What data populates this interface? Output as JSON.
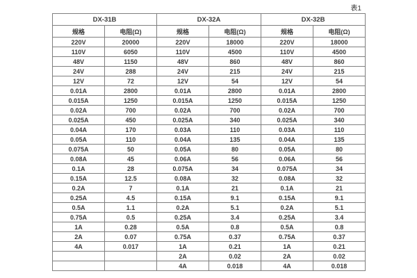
{
  "page": {
    "caption": "表1"
  },
  "table": {
    "groups": [
      {
        "name": "DX-31B",
        "col_headers": [
          "规格",
          "电阻(Ω)"
        ]
      },
      {
        "name": "DX-32A",
        "col_headers": [
          "规格",
          "电阻(Ω)"
        ]
      },
      {
        "name": "DX-32B",
        "col_headers": [
          "规格",
          "电阻(Ω)"
        ]
      }
    ],
    "rows": [
      [
        "220V",
        "20000",
        "220V",
        "18000",
        "220V",
        "18000"
      ],
      [
        "110V",
        "6050",
        "110V",
        "4500",
        "110V",
        "4500"
      ],
      [
        "48V",
        "1150",
        "48V",
        "860",
        "48V",
        "860"
      ],
      [
        "24V",
        "288",
        "24V",
        "215",
        "24V",
        "215"
      ],
      [
        "12V",
        "72",
        "12V",
        "54",
        "12V",
        "54"
      ],
      [
        "0.01A",
        "2800",
        "0.01A",
        "2800",
        "0.01A",
        "2800"
      ],
      [
        "0.015A",
        "1250",
        "0.015A",
        "1250",
        "0.015A",
        "1250"
      ],
      [
        "0.02A",
        "700",
        "0.02A",
        "700",
        "0.02A",
        "700"
      ],
      [
        "0.025A",
        "450",
        "0.025A",
        "340",
        "0.025A",
        "340"
      ],
      [
        "0.04A",
        "170",
        "0.03A",
        "110",
        "0.03A",
        "110"
      ],
      [
        "0.05A",
        "110",
        "0.04A",
        "135",
        "0.04A",
        "135"
      ],
      [
        "0.075A",
        "50",
        "0.05A",
        "80",
        "0.05A",
        "80"
      ],
      [
        "0.08A",
        "45",
        "0.06A",
        "56",
        "0.06A",
        "56"
      ],
      [
        "0.1A",
        "28",
        "0.075A",
        "34",
        "0.075A",
        "34"
      ],
      [
        "0.15A",
        "12.5",
        "0.08A",
        "32",
        "0.08A",
        "32"
      ],
      [
        "0.2A",
        "7",
        "0.1A",
        "21",
        "0.1A",
        "21"
      ],
      [
        "0.25A",
        "4.5",
        "0.15A",
        "9.1",
        "0.15A",
        "9.1"
      ],
      [
        "0.5A",
        "1.1",
        "0.2A",
        "5.1",
        "0.2A",
        "5.1"
      ],
      [
        "0.75A",
        "0.5",
        "0.25A",
        "3.4",
        "0.25A",
        "3.4"
      ],
      [
        "1A",
        "0.28",
        "0.5A",
        "0.8",
        "0.5A",
        "0.8"
      ],
      [
        "2A",
        "0.07",
        "0.75A",
        "0.37",
        "0.75A",
        "0.37"
      ],
      [
        "4A",
        "0.017",
        "1A",
        "0.21",
        "1A",
        "0.21"
      ],
      [
        "",
        "",
        "2A",
        "0.02",
        "2A",
        "0.02"
      ],
      [
        "",
        "",
        "4A",
        "0.018",
        "4A",
        "0.018"
      ]
    ]
  }
}
